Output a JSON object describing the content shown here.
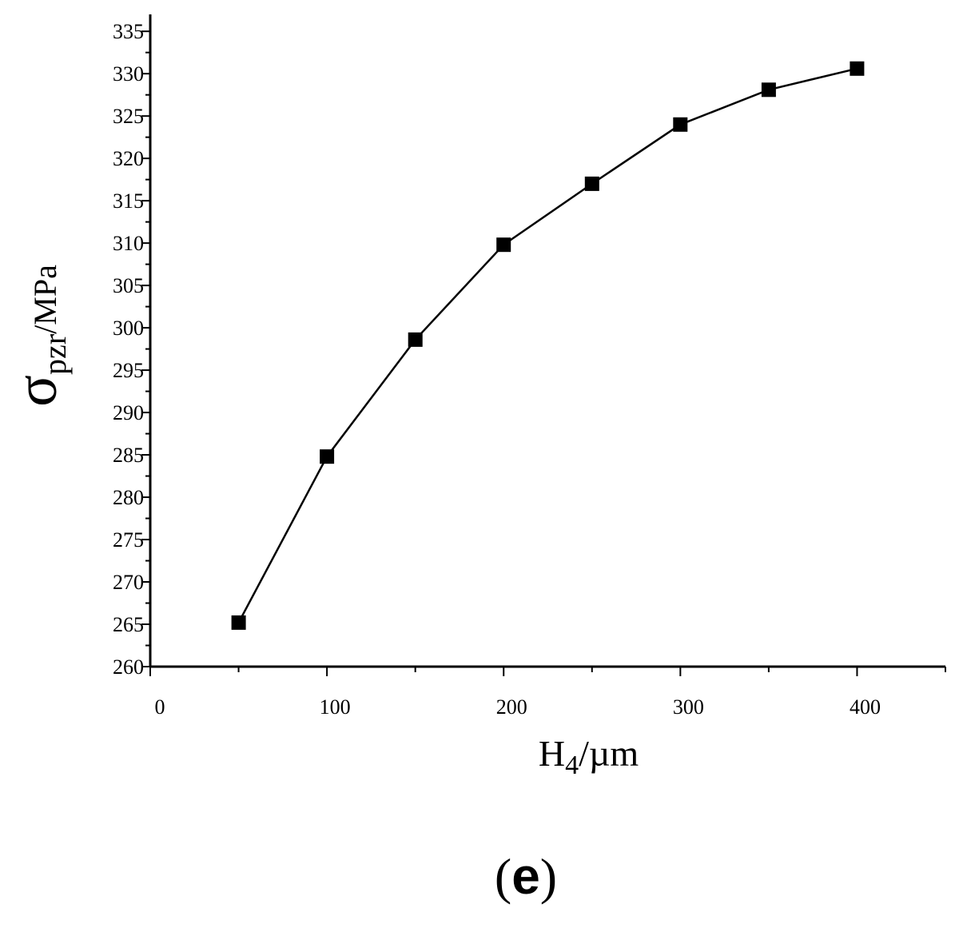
{
  "chart_data": {
    "type": "line",
    "x": [
      50,
      100,
      150,
      200,
      250,
      300,
      350,
      400
    ],
    "series": [
      {
        "values": [
          265.2,
          284.8,
          298.6,
          309.8,
          317.0,
          324.0,
          328.1,
          330.6
        ],
        "marker": "square"
      }
    ],
    "xlim": [
      0,
      450
    ],
    "ylim": [
      260,
      337
    ],
    "xticks": [
      0,
      100,
      200,
      300,
      400
    ],
    "yticks": [
      260,
      265,
      270,
      275,
      280,
      285,
      290,
      295,
      300,
      305,
      310,
      315,
      320,
      325,
      330,
      335
    ],
    "xlabel": {
      "main": "H",
      "sub": "4",
      "unit": "/µm"
    },
    "ylabel": {
      "main": "σ",
      "sub": "pzr",
      "unit": "/MPa"
    },
    "grid": false,
    "legend": "none",
    "colors": {
      "line": "#000000",
      "marker": "#000000",
      "axis": "#000000"
    }
  },
  "panel_label": {
    "open": "(",
    "letter": "e",
    "close": ")"
  }
}
